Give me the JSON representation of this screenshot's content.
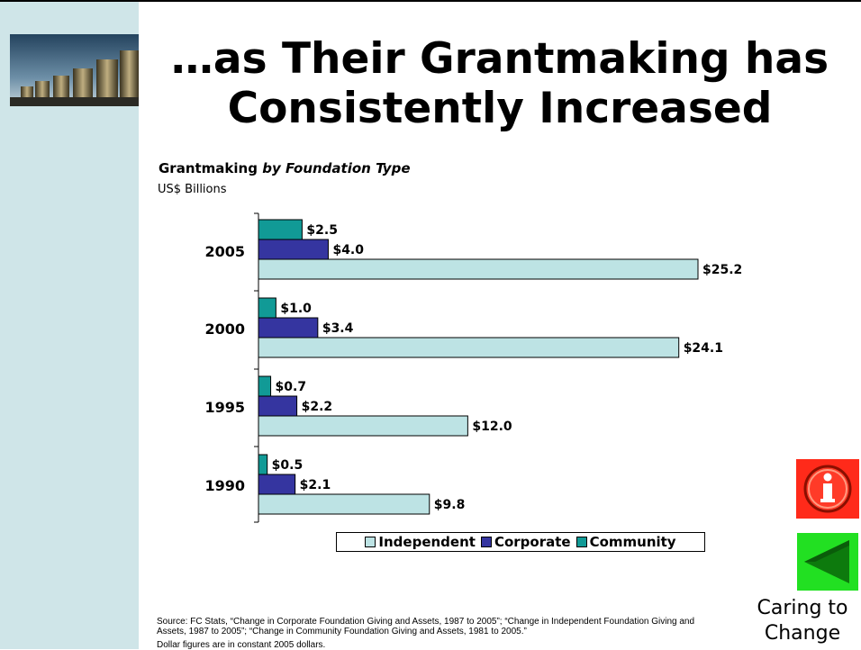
{
  "slide": {
    "title_line1": "…as Their Grantmaking has",
    "title_line2": "Consistently Increased",
    "chart_title_bold": "Grantmaking ",
    "chart_title_italic": "by Foundation Type",
    "chart_subtitle": "US$ Billions",
    "source": "Source:  FC Stats, “Change in Corporate Foundation Giving and Assets, 1987 to 2005”; “Change in Independent Foundation Giving and Assets, 1987 to 2005”; “Change in Community Foundation Giving and Assets, 1981 to 2005.”",
    "note": "Dollar figures are in constant 2005 dollars.",
    "caption_line1": "Caring to",
    "caption_line2": "Change",
    "icons": {
      "logo": "stacked-coins-image",
      "info": "info-icon",
      "back": "back-arrow-icon"
    }
  },
  "chart_data": {
    "type": "bar",
    "orientation": "horizontal",
    "title": "Grantmaking by Foundation Type",
    "subtitle": "US$ Billions",
    "categories": [
      "2005",
      "2000",
      "1995",
      "1990"
    ],
    "series": [
      {
        "name": "Community",
        "color": "#119a96",
        "values": [
          2.5,
          1.0,
          0.7,
          0.5
        ],
        "labels": [
          "$2.5",
          "$1.0",
          "$0.7",
          "$0.5"
        ]
      },
      {
        "name": "Corporate",
        "color": "#3535a0",
        "values": [
          4.0,
          3.4,
          2.2,
          2.1
        ],
        "labels": [
          "$4.0",
          "$3.4",
          "$2.2",
          "$2.1"
        ]
      },
      {
        "name": "Independent",
        "color": "#bde3e4",
        "values": [
          25.2,
          24.1,
          12.0,
          9.8
        ],
        "labels": [
          "$25.2",
          "$24.1",
          "$12.0",
          "$9.8"
        ]
      }
    ],
    "legend": [
      "Independent",
      "Corporate",
      "Community"
    ],
    "legend_position": "bottom",
    "xlim": [
      0,
      25.2
    ],
    "grid": false
  }
}
